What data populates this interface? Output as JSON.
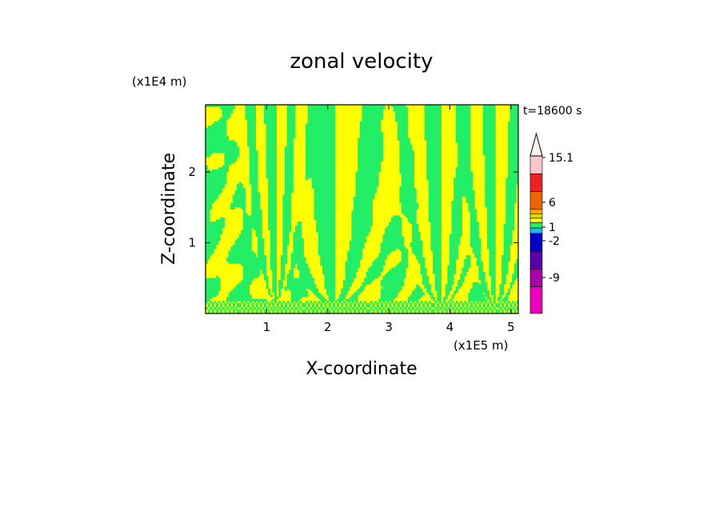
{
  "chart_data": {
    "type": "heatmap",
    "title": "zonal velocity",
    "xlabel": "X-coordinate",
    "ylabel": "Z-coordinate",
    "x_multiplier_label": "(x1E5 m)",
    "y_multiplier_label": "(x1E4 m)",
    "time_label": "t=18600 s",
    "xlim": [
      0,
      5.12
    ],
    "ylim": [
      0,
      2.95
    ],
    "x_ticks": [
      1,
      2,
      3,
      4,
      5
    ],
    "y_ticks": [
      1,
      2
    ],
    "x_tick_labels": [
      "1",
      "2",
      "3",
      "4",
      "5"
    ],
    "y_tick_labels": [
      "1",
      "2"
    ],
    "dominant_fill_colors": {
      "positive": "#ffff00",
      "negative": "#22ee66"
    },
    "plumes": [
      {
        "x_center": 2.1,
        "z_base": 0.15,
        "spread": 0.95
      },
      {
        "x_center": 3.85,
        "z_base": 0.15,
        "spread": 0.55
      },
      {
        "x_center": 4.75,
        "z_base": 0.15,
        "spread": 0.45
      },
      {
        "x_center": 1.15,
        "z_base": 0.2,
        "spread": 0.35
      }
    ],
    "colorbar": {
      "ticks": [
        {
          "value": 15.1,
          "label": "15.1"
        },
        {
          "value": 6,
          "label": "6"
        },
        {
          "value": 1,
          "label": "1"
        },
        {
          "value": -2,
          "label": "-2"
        },
        {
          "value": -9,
          "label": "-9"
        }
      ],
      "bins": [
        {
          "color": "#fac8c8"
        },
        {
          "color": "#ee2222"
        },
        {
          "color": "#ee6600"
        },
        {
          "color": "#ffaa00"
        },
        {
          "color": "#dddd00"
        },
        {
          "color": "#ffff00"
        },
        {
          "color": "#22ee66"
        },
        {
          "color": "#22bbee"
        },
        {
          "color": "#0000cc"
        },
        {
          "color": "#5500aa"
        },
        {
          "color": "#aa00aa"
        },
        {
          "color": "#ee00bb"
        }
      ]
    }
  }
}
